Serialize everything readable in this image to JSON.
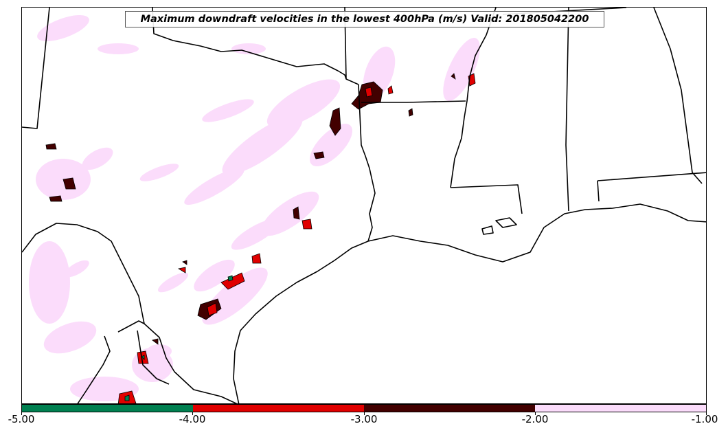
{
  "title": "Maximum downdraft velocities in the lowest 400hPa (m/s) Valid: 201805042200",
  "colorbar": {
    "colors": [
      "#008050",
      "#e00000",
      "#420000",
      "#fbdcfb"
    ],
    "ticks": [
      "-5.00",
      "-4.00",
      "-3.00",
      "-2.00",
      "-1.00"
    ],
    "bounds": [
      -5,
      -4,
      -3,
      -2,
      -1
    ]
  },
  "map": {
    "region": "Southern Plains / Gulf Coast",
    "layers": [
      "state borders",
      "coastline",
      "international border"
    ],
    "colors": {
      "border": "#000000",
      "light_field": "#fbdcfb",
      "dark_field": "#420000",
      "red_field": "#e00000",
      "green_field": "#008050"
    }
  }
}
